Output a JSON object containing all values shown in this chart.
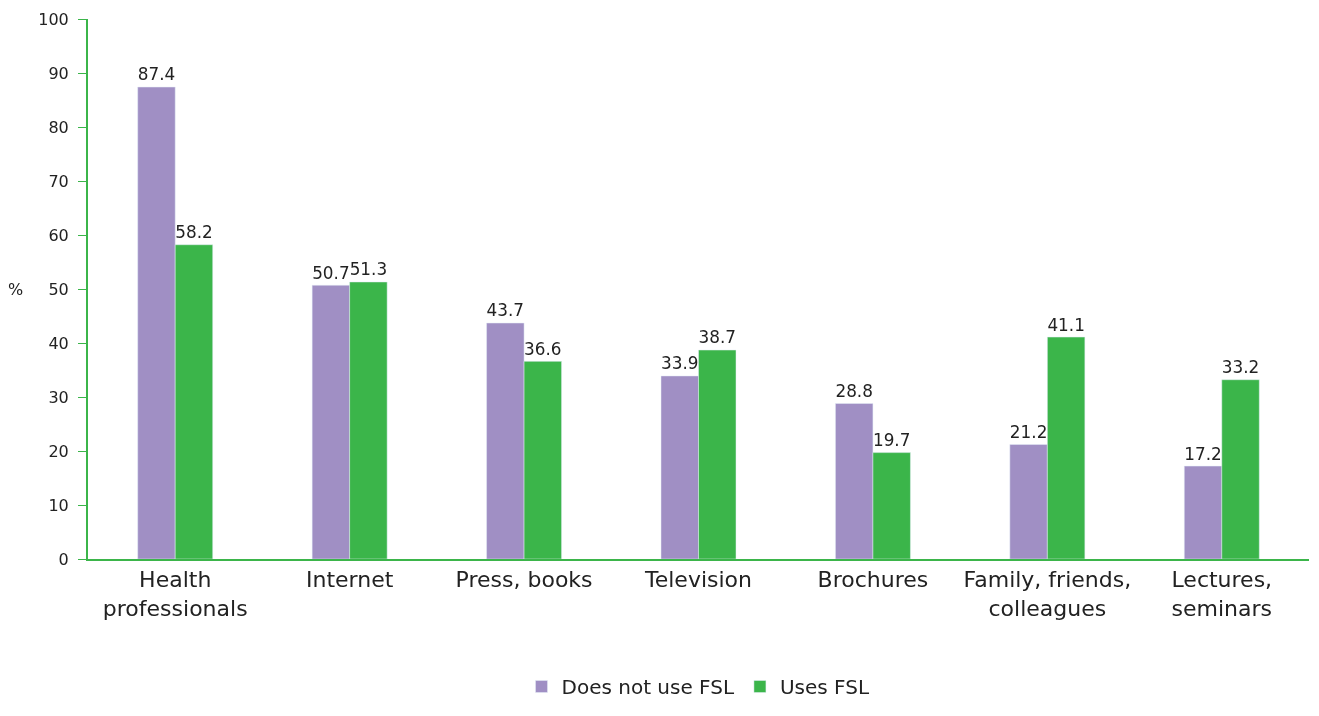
{
  "chart_data": {
    "type": "bar",
    "ylabel": "%",
    "categories": [
      "Health professionals",
      "Internet",
      "Press, books",
      "Television",
      "Brochures",
      "Family, friends, colleagues",
      "Lectures, seminars"
    ],
    "series": [
      {
        "name": "Does not use FSL",
        "color": "#a08fc4",
        "values": [
          87.4,
          50.7,
          43.7,
          33.9,
          28.8,
          21.2,
          17.2
        ]
      },
      {
        "name": "Uses FSL",
        "color": "#3bb54a",
        "values": [
          58.2,
          51.3,
          36.6,
          38.7,
          19.7,
          41.1,
          33.2
        ]
      }
    ],
    "ylim": [
      0,
      100
    ],
    "yticks": [
      0,
      10,
      20,
      30,
      40,
      50,
      60,
      70,
      80,
      90,
      100
    ],
    "data_labels": true,
    "legend": "bottom"
  }
}
